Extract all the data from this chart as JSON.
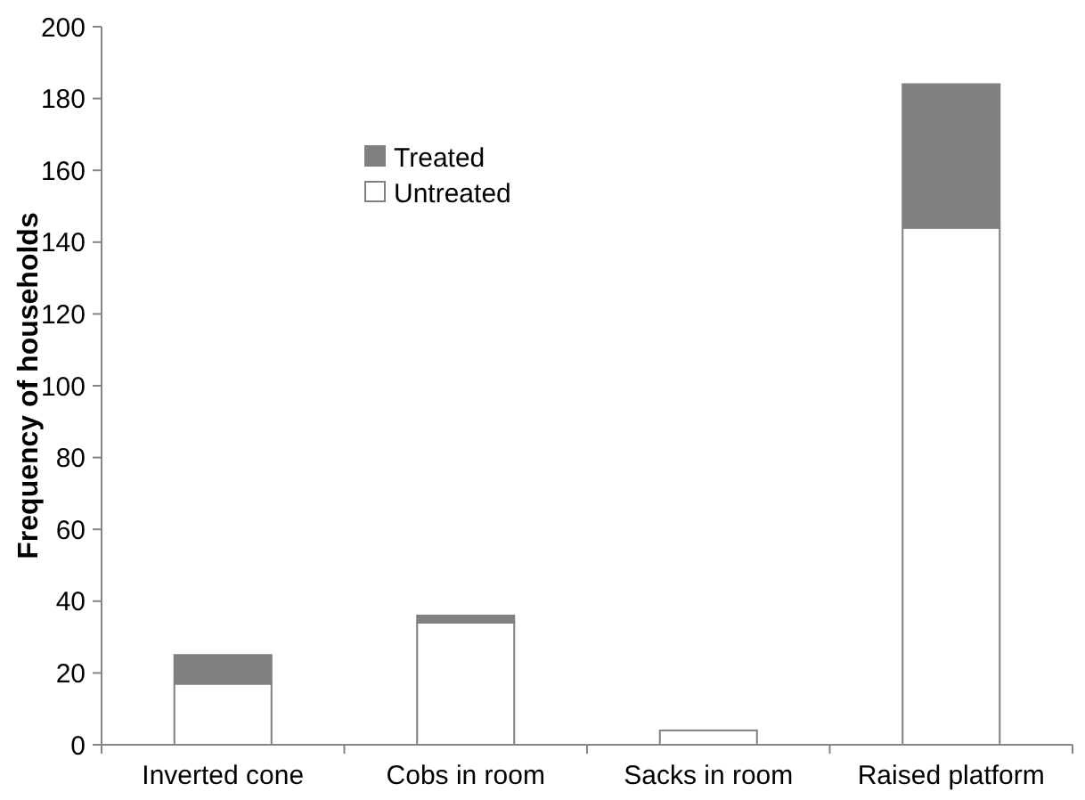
{
  "chart_data": {
    "type": "bar",
    "ylabel": "Frequency of households",
    "categories": [
      "Inverted cone",
      "Cobs in room",
      "Sacks in room",
      "Raised platform"
    ],
    "series": [
      {
        "name": "Untreated",
        "color": "#ffffff",
        "values": [
          17,
          34,
          4,
          144
        ]
      },
      {
        "name": "Treated",
        "color": "#808080",
        "values": [
          8,
          2,
          0,
          40
        ]
      }
    ],
    "stacked": true,
    "ylim": [
      0,
      200
    ],
    "yticks": [
      0,
      20,
      40,
      60,
      80,
      100,
      120,
      140,
      160,
      180,
      200
    ],
    "grid": false,
    "legend": "top"
  }
}
